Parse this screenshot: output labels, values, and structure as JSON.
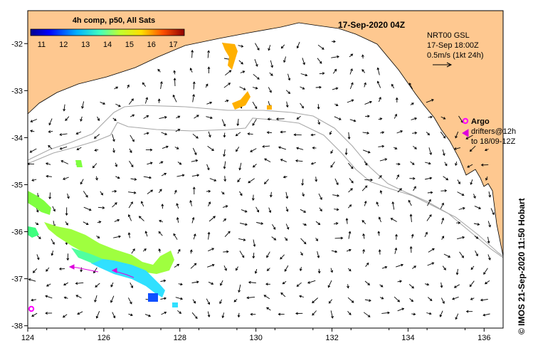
{
  "map": {
    "date_title": "17-Sep-2020 04Z",
    "colorbar": {
      "title": "4h comp, p50, All Sats",
      "ticks": [
        "11",
        "12",
        "13",
        "14",
        "15",
        "16",
        "17"
      ],
      "range": [
        10.5,
        17.5
      ],
      "colors": [
        "#00008f",
        "#0000ff",
        "#0070ff",
        "#00dfff",
        "#50ff9f",
        "#bfff30",
        "#ffdf00",
        "#ff7000",
        "#ff0000",
        "#8f0000"
      ]
    },
    "legend": {
      "line1": "NRT00 GSL",
      "line2": "17-Sep 18:00Z",
      "line3": "0.5m/s (1kt 24h)",
      "argo_label": "Argo",
      "drifters_line1": "drifters@12h",
      "drifters_line2": "to 18/09-12Z"
    },
    "credit": "© IMOS 21-Sep-2020 11:50 Hobart",
    "x_axis_labels": [
      "124",
      "126",
      "128",
      "130",
      "132",
      "134",
      "136"
    ],
    "y_axis_labels": [
      "-32",
      "-33",
      "-34",
      "-35",
      "-36",
      "-37",
      "-38"
    ],
    "lon_range": [
      124,
      136.5
    ],
    "lat_range": [
      -38.05,
      -31.3
    ],
    "colors": {
      "land": "#fec890",
      "coast": "#000000",
      "isobath": "#a8a8a8",
      "argo": "#ff00ff",
      "drifter": "#dd00dd"
    }
  }
}
